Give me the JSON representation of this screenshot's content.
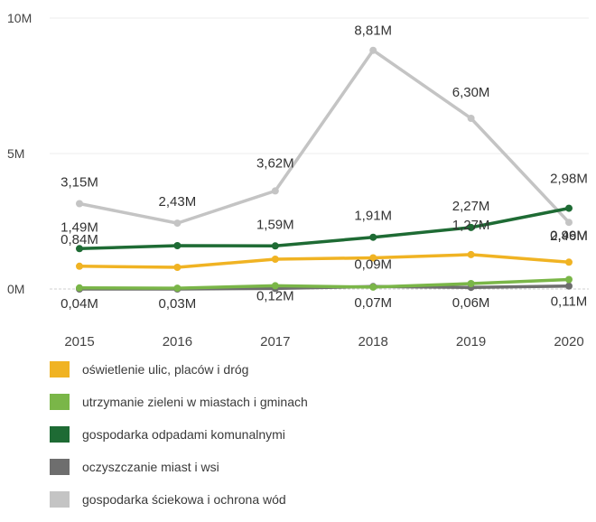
{
  "chart_data": {
    "type": "line",
    "categories": [
      "2015",
      "2016",
      "2017",
      "2018",
      "2019",
      "2020"
    ],
    "ylim": [
      0,
      10
    ],
    "y_ticks": [
      {
        "value": 0,
        "label": "0M"
      },
      {
        "value": 5,
        "label": "5M"
      },
      {
        "value": 10,
        "label": "10M"
      }
    ],
    "grid": "horizontal",
    "legend_position": "bottom",
    "series": [
      {
        "name": "oświetlenie ulic, placów i dróg",
        "color": "#f0b323",
        "values": [
          0.84,
          0.8,
          1.1,
          1.15,
          1.27,
          0.99
        ],
        "labels": [
          "0,84M",
          "",
          "",
          "",
          "1,27M",
          "0,99M"
        ]
      },
      {
        "name": "utrzymanie zieleni w miastach i gminach",
        "color": "#7ab648",
        "values": [
          0.04,
          0.03,
          0.12,
          0.07,
          0.2,
          0.35
        ],
        "labels": [
          "0,04M",
          "0,03M",
          "0,12M",
          "0,07M",
          "",
          ""
        ]
      },
      {
        "name": "gospodarka odpadami komunalnymi",
        "color": "#1e6b34",
        "values": [
          1.49,
          1.6,
          1.59,
          1.91,
          2.27,
          2.98
        ],
        "labels": [
          "1,49M",
          "",
          "1,59M",
          "1,91M",
          "2,27M",
          "2,98M"
        ]
      },
      {
        "name": "oczyszczanie miast i wsi",
        "color": "#6e6e6e",
        "values": [
          0.0,
          0.0,
          0.02,
          0.09,
          0.06,
          0.11
        ],
        "labels": [
          "",
          "",
          "",
          "0,09M",
          "0,06M",
          "0,11M"
        ]
      },
      {
        "name": "gospodarka ściekowa i ochrona wód",
        "color": "#c4c4c4",
        "values": [
          3.15,
          2.43,
          3.62,
          8.81,
          6.3,
          2.46
        ],
        "labels": [
          "3,15M",
          "2,43M",
          "3,62M",
          "8,81M",
          "6,30M",
          "2,46M"
        ]
      }
    ]
  }
}
